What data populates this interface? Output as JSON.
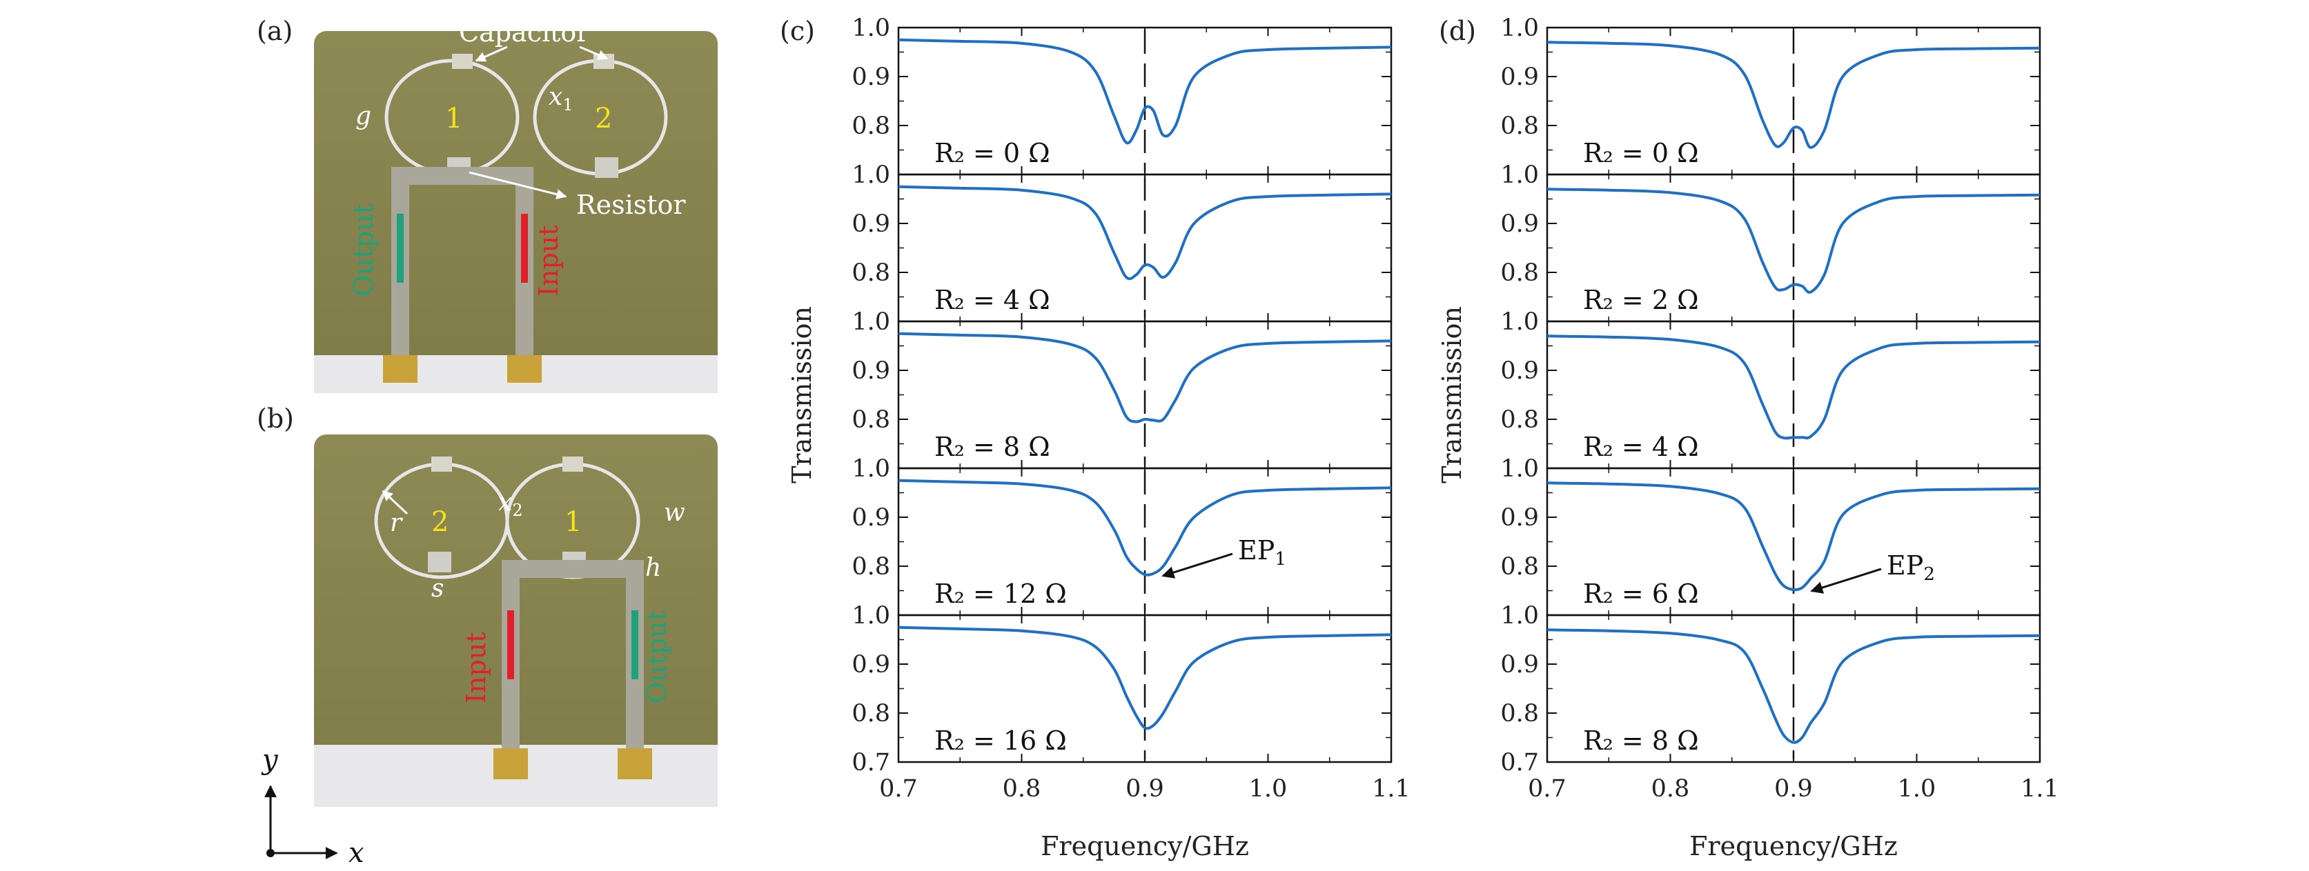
{
  "photos": {
    "a": {
      "panel_label": "(a)",
      "capacitor": "Capacitor",
      "resistor": "Resistor",
      "input": "Input",
      "output": "Output",
      "ring1": "1",
      "ring2": "2",
      "g": "g",
      "x": "x",
      "x_sub": "1"
    },
    "b": {
      "panel_label": "(b)",
      "ring1": "1",
      "ring2": "2",
      "r": "r",
      "s": "s",
      "w": "w",
      "h": "h",
      "x": "x",
      "x_sub": "2",
      "input": "Input",
      "output": "Output"
    },
    "axes": {
      "x": "x",
      "y": "y"
    }
  },
  "colors": {
    "curve": "#1f6fc5",
    "board": "#8a8650",
    "copper": "#a9a79a",
    "input_arrow": "#e0202a",
    "output_arrow": "#1fa27a",
    "ring_label": "#f4e21c"
  },
  "chart_data": [
    {
      "type": "line",
      "panel_label": "(c)",
      "xlabel": "Frequency/GHz",
      "ylabel": "Transmission",
      "xlim": [
        0.7,
        1.1
      ],
      "ylim": [
        0.7,
        1.0
      ],
      "x_ticks": [
        "0.7",
        "0.8",
        "0.9",
        "1.0",
        "1.1"
      ],
      "y_ticks": [
        "1.0",
        "0.9",
        "0.8",
        "0.7"
      ],
      "marker_x": 0.9,
      "annotation": {
        "text": "EP",
        "sub": "1",
        "subplot": 3
      },
      "subplots": [
        {
          "label": "R₂ = 0 Ω",
          "x": [
            0.7,
            0.75,
            0.8,
            0.84,
            0.86,
            0.875,
            0.885,
            0.893,
            0.9,
            0.907,
            0.915,
            0.925,
            0.94,
            0.97,
            1.0,
            1.05,
            1.1
          ],
          "y": [
            0.975,
            0.972,
            0.968,
            0.95,
            0.91,
            0.82,
            0.765,
            0.79,
            0.835,
            0.83,
            0.78,
            0.8,
            0.9,
            0.945,
            0.955,
            0.958,
            0.96
          ]
        },
        {
          "label": "R₂ = 4 Ω",
          "x": [
            0.7,
            0.75,
            0.8,
            0.84,
            0.86,
            0.875,
            0.885,
            0.893,
            0.9,
            0.907,
            0.915,
            0.925,
            0.94,
            0.97,
            1.0,
            1.05,
            1.1
          ],
          "y": [
            0.975,
            0.972,
            0.968,
            0.952,
            0.92,
            0.84,
            0.79,
            0.795,
            0.815,
            0.81,
            0.79,
            0.82,
            0.9,
            0.945,
            0.955,
            0.958,
            0.96
          ]
        },
        {
          "label": "R₂ = 8 Ω",
          "x": [
            0.7,
            0.75,
            0.8,
            0.84,
            0.86,
            0.875,
            0.885,
            0.893,
            0.9,
            0.907,
            0.915,
            0.925,
            0.94,
            0.97,
            1.0,
            1.05,
            1.1
          ],
          "y": [
            0.975,
            0.972,
            0.968,
            0.953,
            0.925,
            0.86,
            0.805,
            0.795,
            0.8,
            0.798,
            0.8,
            0.84,
            0.905,
            0.945,
            0.955,
            0.958,
            0.96
          ]
        },
        {
          "label": "R₂ = 12 Ω",
          "x": [
            0.7,
            0.75,
            0.8,
            0.84,
            0.86,
            0.875,
            0.885,
            0.893,
            0.9,
            0.907,
            0.915,
            0.925,
            0.94,
            0.97,
            1.0,
            1.05,
            1.1
          ],
          "y": [
            0.975,
            0.972,
            0.968,
            0.955,
            0.93,
            0.875,
            0.82,
            0.795,
            0.783,
            0.785,
            0.8,
            0.84,
            0.9,
            0.945,
            0.955,
            0.958,
            0.96
          ]
        },
        {
          "label": "R₂ = 16 Ω",
          "x": [
            0.7,
            0.75,
            0.8,
            0.84,
            0.86,
            0.875,
            0.885,
            0.893,
            0.9,
            0.907,
            0.915,
            0.925,
            0.94,
            0.97,
            1.0,
            1.05,
            1.1
          ],
          "y": [
            0.975,
            0.972,
            0.968,
            0.956,
            0.935,
            0.89,
            0.835,
            0.795,
            0.77,
            0.775,
            0.8,
            0.845,
            0.905,
            0.945,
            0.955,
            0.958,
            0.96
          ]
        }
      ]
    },
    {
      "type": "line",
      "panel_label": "(d)",
      "xlabel": "Frequency/GHz",
      "ylabel": "Transmission",
      "xlim": [
        0.7,
        1.1
      ],
      "ylim": [
        0.7,
        1.0
      ],
      "x_ticks": [
        "0.7",
        "0.8",
        "0.9",
        "1.0",
        "1.1"
      ],
      "y_ticks": [
        "1.0",
        "0.9",
        "0.8",
        "0.7"
      ],
      "marker_x": 0.9,
      "annotation": {
        "text": "EP",
        "sub": "2",
        "subplot": 3
      },
      "subplots": [
        {
          "label": "R₂ = 0 Ω",
          "x": [
            0.7,
            0.75,
            0.8,
            0.84,
            0.86,
            0.875,
            0.885,
            0.892,
            0.9,
            0.907,
            0.914,
            0.925,
            0.94,
            0.97,
            1.0,
            1.05,
            1.1
          ],
          "y": [
            0.97,
            0.968,
            0.963,
            0.945,
            0.905,
            0.81,
            0.76,
            0.765,
            0.795,
            0.79,
            0.755,
            0.79,
            0.9,
            0.945,
            0.955,
            0.957,
            0.958
          ]
        },
        {
          "label": "R₂ = 2 Ω",
          "x": [
            0.7,
            0.75,
            0.8,
            0.84,
            0.86,
            0.875,
            0.885,
            0.892,
            0.9,
            0.907,
            0.914,
            0.925,
            0.94,
            0.97,
            1.0,
            1.05,
            1.1
          ],
          "y": [
            0.97,
            0.968,
            0.963,
            0.946,
            0.91,
            0.82,
            0.77,
            0.765,
            0.775,
            0.772,
            0.76,
            0.795,
            0.9,
            0.945,
            0.955,
            0.957,
            0.958
          ]
        },
        {
          "label": "R₂ = 4 Ω",
          "x": [
            0.7,
            0.75,
            0.8,
            0.84,
            0.86,
            0.875,
            0.885,
            0.892,
            0.9,
            0.907,
            0.914,
            0.925,
            0.94,
            0.97,
            1.0,
            1.05,
            1.1
          ],
          "y": [
            0.97,
            0.968,
            0.963,
            0.947,
            0.915,
            0.83,
            0.775,
            0.762,
            0.763,
            0.763,
            0.765,
            0.8,
            0.9,
            0.945,
            0.955,
            0.957,
            0.958
          ]
        },
        {
          "label": "R₂ = 6 Ω",
          "x": [
            0.7,
            0.75,
            0.8,
            0.84,
            0.86,
            0.875,
            0.885,
            0.892,
            0.9,
            0.907,
            0.914,
            0.925,
            0.94,
            0.97,
            1.0,
            1.05,
            1.1
          ],
          "y": [
            0.97,
            0.968,
            0.963,
            0.948,
            0.92,
            0.84,
            0.785,
            0.76,
            0.752,
            0.756,
            0.775,
            0.81,
            0.905,
            0.945,
            0.955,
            0.957,
            0.958
          ]
        },
        {
          "label": "R₂ = 8 Ω",
          "x": [
            0.7,
            0.75,
            0.8,
            0.84,
            0.86,
            0.875,
            0.885,
            0.892,
            0.9,
            0.907,
            0.914,
            0.925,
            0.94,
            0.97,
            1.0,
            1.05,
            1.1
          ],
          "y": [
            0.97,
            0.968,
            0.963,
            0.949,
            0.925,
            0.85,
            0.79,
            0.755,
            0.74,
            0.75,
            0.78,
            0.82,
            0.905,
            0.945,
            0.955,
            0.957,
            0.958
          ]
        }
      ]
    }
  ]
}
